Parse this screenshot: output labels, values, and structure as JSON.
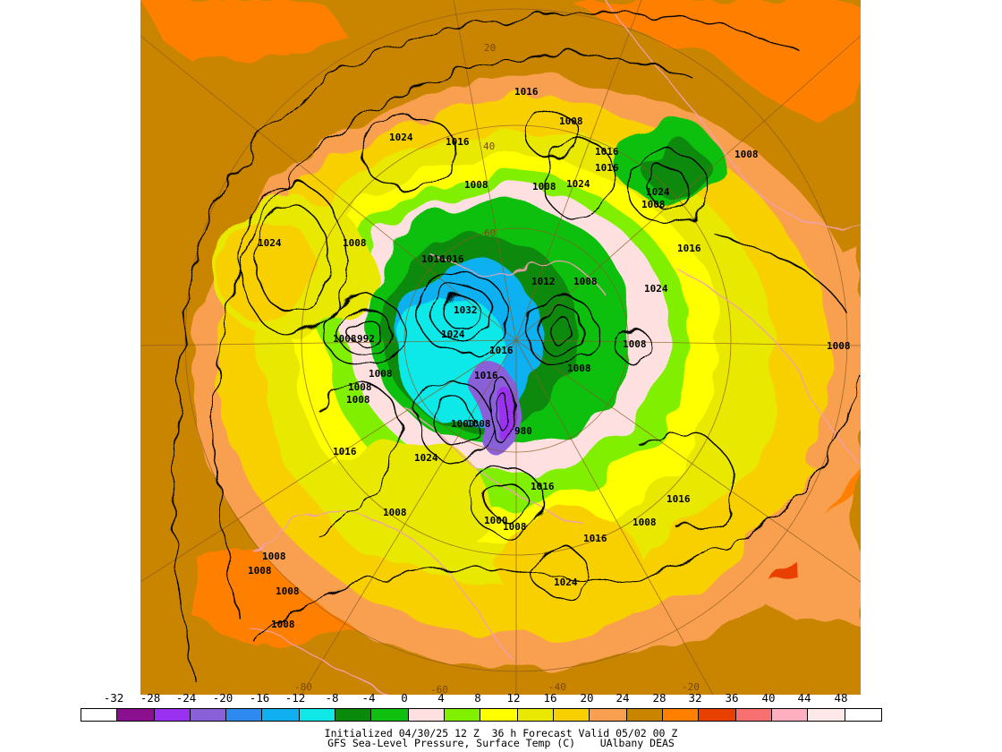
{
  "map": {
    "background_color": "#c98400",
    "contour_color": "#000000",
    "coastline_color": "#f0a0b0",
    "grid_color": "#8a5a20",
    "latitude_labels": [
      "20",
      "40",
      "60"
    ],
    "longitude_labels": [
      "-80",
      "-60",
      "-40",
      "-20"
    ],
    "isobar_labels": [
      "1016",
      "1008",
      "1024",
      "1016",
      "1016",
      "1016",
      "1008",
      "1008",
      "1024",
      "1024",
      "1008",
      "1008",
      "1016",
      "1024",
      "1008",
      "1016",
      "1016",
      "1012",
      "1008",
      "1024",
      "1032",
      "1008",
      "992",
      "1024",
      "1016",
      "1008",
      "1008",
      "1008",
      "1008",
      "1016",
      "1008",
      "1000",
      "1008",
      "980",
      "1016",
      "1024",
      "1016",
      "1008",
      "1000",
      "1008",
      "1008",
      "1016",
      "1008",
      "1008",
      "1008",
      "1024",
      "1008",
      "1016",
      "1008"
    ]
  },
  "legend": {
    "ticks": [
      "-32",
      "-28",
      "-24",
      "-20",
      "-16",
      "-12",
      "-8",
      "-4",
      "0",
      "4",
      "8",
      "12",
      "16",
      "20",
      "24",
      "28",
      "32",
      "36",
      "40",
      "44",
      "48"
    ],
    "colors": [
      "#ffffff",
      "#8a1090",
      "#9a30f0",
      "#8a60d8",
      "#2f8af0",
      "#10b0f0",
      "#10e8e8",
      "#0a8a0a",
      "#10c010",
      "#ffe0e0",
      "#80f000",
      "#ffff00",
      "#e8e800",
      "#f8d000",
      "#f8a050",
      "#c98400",
      "#ff8000",
      "#e84000",
      "#f87070",
      "#ffb0c0",
      "#ffe8e8",
      "#ffffff"
    ]
  },
  "footer": {
    "line1": "Initialized 04/30/25 12 Z  36 h Forecast Valid 05/02 00 Z",
    "line2": "GFS Sea-Level Pressure, Surface Temp (C)    UAlbany DEAS"
  }
}
